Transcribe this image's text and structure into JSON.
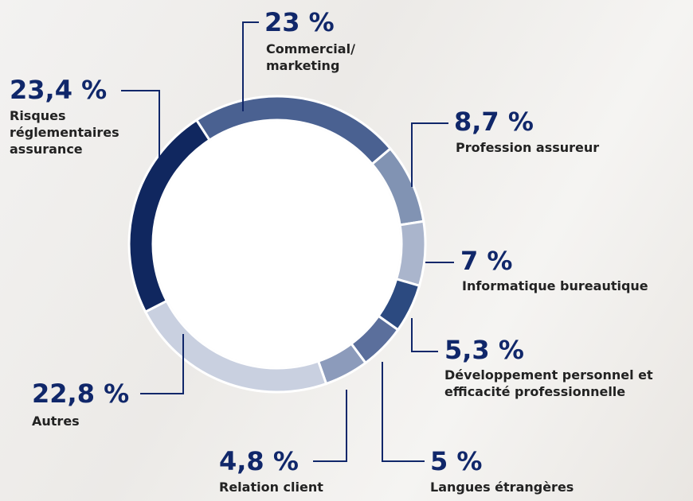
{
  "chart_data": {
    "type": "pie",
    "donut": true,
    "categories": [
      "Commercial/ marketing",
      "Profession assureur",
      "Informatique bureautique",
      "Développement personnel et efficacité professionnelle",
      "Langues étrangères",
      "Relation client",
      "Autres",
      "Risques réglementaires assurance"
    ],
    "values": [
      23,
      8.7,
      7,
      5.3,
      5,
      4.8,
      22.8,
      23.4
    ],
    "value_labels": [
      "23 %",
      "8,7 %",
      "7 %",
      "5,3 %",
      "5 %",
      "4,8 %",
      "22,8 %",
      "23,4 %"
    ],
    "colors": [
      "#4a6191",
      "#8193b3",
      "#aab5cc",
      "#2c4a80",
      "#5b6f9c",
      "#8c9bbb",
      "#c9d0e0",
      "#10275f"
    ]
  }
}
